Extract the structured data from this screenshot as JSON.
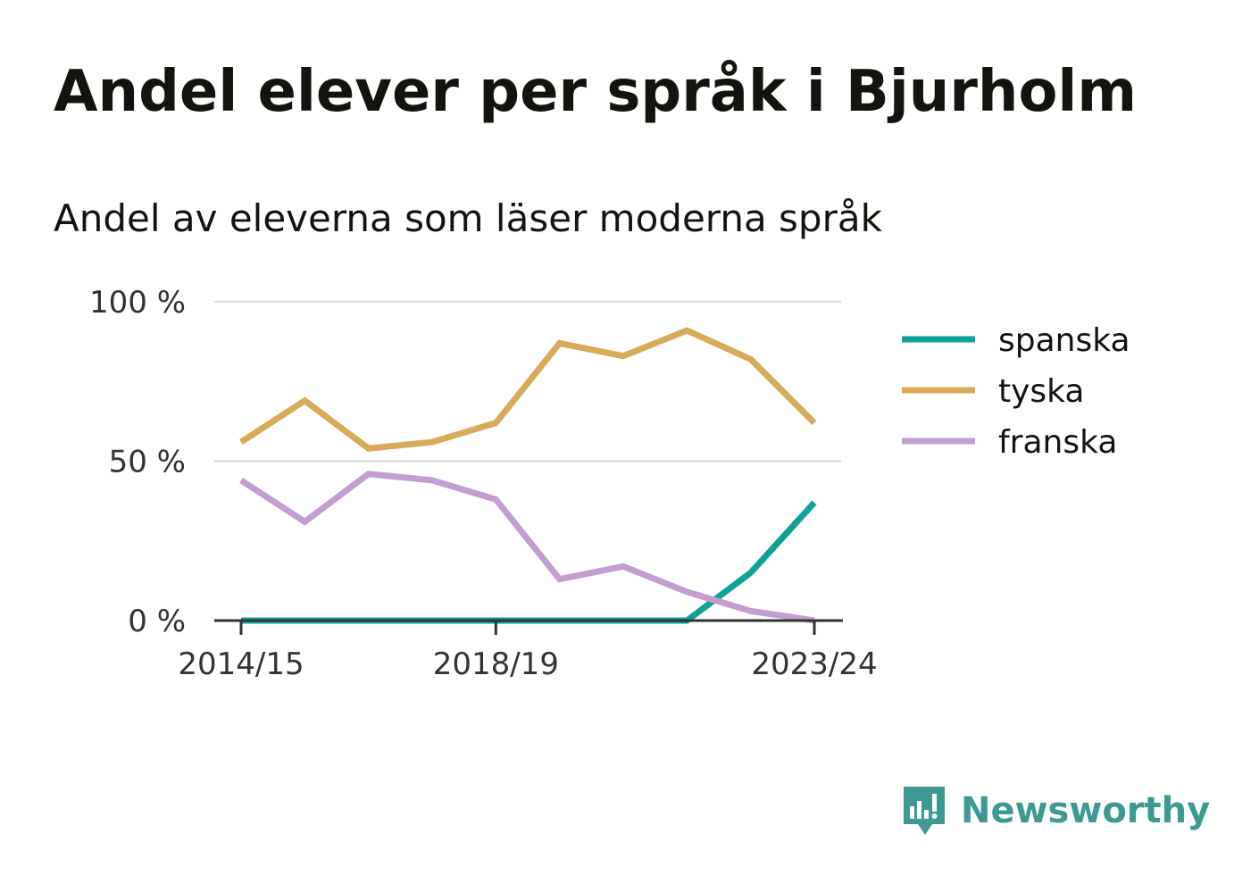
{
  "title": "Andel elever per språk i Bjurholm",
  "subtitle": "Andel av eleverna som läser moderna språk",
  "brand": "Newsworthy",
  "chart_data": {
    "type": "line",
    "x": [
      "2014/15",
      "2015/16",
      "2016/17",
      "2017/18",
      "2018/19",
      "2019/20",
      "2020/21",
      "2021/22",
      "2022/23",
      "2023/24"
    ],
    "x_tick_labels": [
      "2014/15",
      "2018/19",
      "2023/24"
    ],
    "y_tick_labels": [
      "0 %",
      "50 %",
      "100 %"
    ],
    "ylim": [
      0,
      100
    ],
    "grid": true,
    "legend_position": "right",
    "series": [
      {
        "name": "spanska",
        "color": "#0fa398",
        "values": [
          0,
          0,
          0,
          0,
          0,
          0,
          0,
          0,
          15,
          37
        ]
      },
      {
        "name": "tyska",
        "color": "#d8ab5a",
        "values": [
          56,
          69,
          54,
          56,
          62,
          87,
          83,
          91,
          82,
          62
        ]
      },
      {
        "name": "franska",
        "color": "#c39fd0",
        "values": [
          44,
          31,
          46,
          44,
          38,
          13,
          17,
          9,
          3,
          0
        ]
      }
    ]
  }
}
